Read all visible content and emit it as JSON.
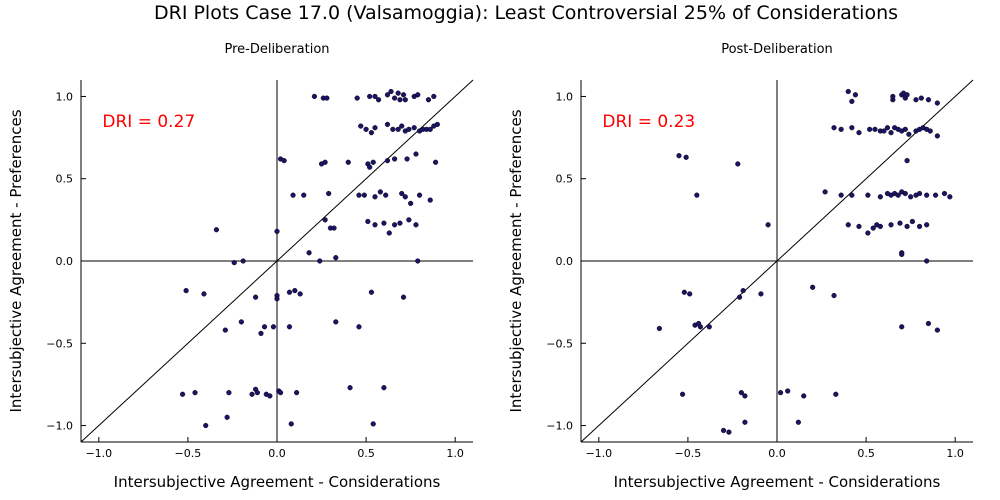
{
  "figure_title": "DRI Plots Case 17.0 (Valsamoggia): Least Controversial 25% of Considerations",
  "chart_data": [
    {
      "type": "scatter",
      "title": "Pre-Deliberation",
      "annotation": "DRI = 0.27",
      "annotation_color": "#ff0000",
      "xlabel": "Intersubjective Agreement - Considerations",
      "ylabel": "Intersubjective Agreement - Preferences",
      "xlim": [
        -1.1,
        1.1
      ],
      "ylim": [
        -1.1,
        1.1
      ],
      "xticks": [
        -1.0,
        -0.5,
        0.0,
        0.5,
        1.0
      ],
      "yticks": [
        -1.0,
        -0.5,
        0.0,
        0.5,
        1.0
      ],
      "xtick_labels": [
        "−1.0",
        "−0.5",
        "0.0",
        "0.5",
        "1.0"
      ],
      "ytick_labels": [
        "−1.0",
        "−0.5",
        "0.0",
        "0.5",
        "1.0"
      ],
      "grid": false,
      "point_color": "#1a1464",
      "points": [
        [
          0.21,
          1.0
        ],
        [
          0.26,
          0.99
        ],
        [
          0.28,
          0.99
        ],
        [
          0.45,
          0.99
        ],
        [
          0.52,
          1.0
        ],
        [
          0.55,
          1.0
        ],
        [
          0.57,
          0.98
        ],
        [
          0.62,
          1.01
        ],
        [
          0.64,
          1.03
        ],
        [
          0.66,
          0.99
        ],
        [
          0.68,
          1.02
        ],
        [
          0.69,
          0.98
        ],
        [
          0.71,
          1.01
        ],
        [
          0.72,
          0.98
        ],
        [
          0.77,
          1.0
        ],
        [
          0.79,
          1.01
        ],
        [
          0.85,
          0.98
        ],
        [
          0.88,
          1.0
        ],
        [
          0.47,
          0.82
        ],
        [
          0.5,
          0.8
        ],
        [
          0.53,
          0.78
        ],
        [
          0.55,
          0.81
        ],
        [
          0.62,
          0.83
        ],
        [
          0.65,
          0.8
        ],
        [
          0.68,
          0.8
        ],
        [
          0.7,
          0.82
        ],
        [
          0.72,
          0.79
        ],
        [
          0.74,
          0.8
        ],
        [
          0.77,
          0.81
        ],
        [
          0.8,
          0.79
        ],
        [
          0.82,
          0.8
        ],
        [
          0.84,
          0.8
        ],
        [
          0.86,
          0.8
        ],
        [
          0.88,
          0.82
        ],
        [
          0.9,
          0.83
        ],
        [
          0.02,
          0.62
        ],
        [
          0.04,
          0.61
        ],
        [
          0.25,
          0.59
        ],
        [
          0.27,
          0.6
        ],
        [
          0.4,
          0.6
        ],
        [
          0.51,
          0.59
        ],
        [
          0.52,
          0.57
        ],
        [
          0.54,
          0.6
        ],
        [
          0.62,
          0.61
        ],
        [
          0.66,
          0.62
        ],
        [
          0.73,
          0.62
        ],
        [
          0.78,
          0.65
        ],
        [
          0.89,
          0.6
        ],
        [
          0.09,
          0.4
        ],
        [
          0.15,
          0.4
        ],
        [
          0.29,
          0.41
        ],
        [
          0.46,
          0.4
        ],
        [
          0.49,
          0.4
        ],
        [
          0.55,
          0.39
        ],
        [
          0.58,
          0.42
        ],
        [
          0.61,
          0.4
        ],
        [
          0.7,
          0.41
        ],
        [
          0.72,
          0.39
        ],
        [
          0.75,
          0.35
        ],
        [
          0.8,
          0.4
        ],
        [
          0.86,
          0.37
        ],
        [
          -0.34,
          0.19
        ],
        [
          0.0,
          0.18
        ],
        [
          0.18,
          0.05
        ],
        [
          0.27,
          0.25
        ],
        [
          0.3,
          0.2
        ],
        [
          0.32,
          0.2
        ],
        [
          0.33,
          0.02
        ],
        [
          0.51,
          0.24
        ],
        [
          0.55,
          0.22
        ],
        [
          0.6,
          0.23
        ],
        [
          0.63,
          0.17
        ],
        [
          0.66,
          0.22
        ],
        [
          0.69,
          0.23
        ],
        [
          0.74,
          0.25
        ],
        [
          0.78,
          0.22
        ],
        [
          0.79,
          0.0
        ],
        [
          -0.24,
          -0.01
        ],
        [
          -0.19,
          0.0
        ],
        [
          0.24,
          0.0
        ],
        [
          -0.51,
          -0.18
        ],
        [
          -0.41,
          -0.2
        ],
        [
          -0.29,
          -0.42
        ],
        [
          -0.2,
          -0.37
        ],
        [
          -0.12,
          -0.22
        ],
        [
          -0.09,
          -0.44
        ],
        [
          -0.07,
          -0.4
        ],
        [
          -0.02,
          -0.4
        ],
        [
          0.0,
          -0.21
        ],
        [
          0.0,
          -0.23
        ],
        [
          0.07,
          -0.4
        ],
        [
          0.07,
          -0.19
        ],
        [
          0.1,
          -0.18
        ],
        [
          0.13,
          -0.2
        ],
        [
          0.33,
          -0.37
        ],
        [
          0.46,
          -0.4
        ],
        [
          0.53,
          -0.19
        ],
        [
          0.71,
          -0.22
        ],
        [
          -0.53,
          -0.81
        ],
        [
          -0.46,
          -0.8
        ],
        [
          -0.27,
          -0.8
        ],
        [
          -0.28,
          -0.95
        ],
        [
          -0.14,
          -0.81
        ],
        [
          -0.12,
          -0.78
        ],
        [
          -0.11,
          -0.8
        ],
        [
          -0.06,
          -0.81
        ],
        [
          -0.04,
          -0.82
        ],
        [
          0.01,
          -0.79
        ],
        [
          0.02,
          -0.8
        ],
        [
          0.08,
          -0.99
        ],
        [
          0.11,
          -0.8
        ],
        [
          0.41,
          -0.77
        ],
        [
          0.6,
          -0.77
        ],
        [
          0.54,
          -0.99
        ],
        [
          -0.4,
          -1.0
        ]
      ]
    },
    {
      "type": "scatter",
      "title": "Post-Deliberation",
      "annotation": "DRI = 0.23",
      "annotation_color": "#ff0000",
      "xlabel": "Intersubjective Agreement - Considerations",
      "ylabel": "Intersubjective Agreement - Preferences",
      "xlim": [
        -1.1,
        1.1
      ],
      "ylim": [
        -1.1,
        1.1
      ],
      "xticks": [
        -1.0,
        -0.5,
        0.0,
        0.5,
        1.0
      ],
      "yticks": [
        -1.0,
        -0.5,
        0.0,
        0.5,
        1.0
      ],
      "xtick_labels": [
        "−1.0",
        "−0.5",
        "0.0",
        "0.5",
        "1.0"
      ],
      "ytick_labels": [
        "−1.0",
        "−0.5",
        "0.0",
        "0.5",
        "1.0"
      ],
      "grid": false,
      "point_color": "#1a1464",
      "points": [
        [
          0.4,
          1.03
        ],
        [
          0.42,
          0.97
        ],
        [
          0.44,
          1.01
        ],
        [
          0.65,
          0.98
        ],
        [
          0.65,
          1.0
        ],
        [
          0.7,
          1.01
        ],
        [
          0.71,
          1.02
        ],
        [
          0.72,
          0.99
        ],
        [
          0.73,
          1.01
        ],
        [
          0.78,
          0.98
        ],
        [
          0.81,
          0.99
        ],
        [
          0.85,
          0.98
        ],
        [
          0.9,
          0.96
        ],
        [
          0.32,
          0.81
        ],
        [
          0.36,
          0.8
        ],
        [
          0.42,
          0.81
        ],
        [
          0.46,
          0.78
        ],
        [
          0.52,
          0.8
        ],
        [
          0.55,
          0.8
        ],
        [
          0.58,
          0.79
        ],
        [
          0.6,
          0.79
        ],
        [
          0.62,
          0.81
        ],
        [
          0.64,
          0.78
        ],
        [
          0.66,
          0.81
        ],
        [
          0.68,
          0.8
        ],
        [
          0.7,
          0.79
        ],
        [
          0.72,
          0.8
        ],
        [
          0.74,
          0.77
        ],
        [
          0.78,
          0.79
        ],
        [
          0.8,
          0.8
        ],
        [
          0.82,
          0.81
        ],
        [
          0.84,
          0.8
        ],
        [
          0.86,
          0.79
        ],
        [
          0.9,
          0.76
        ],
        [
          -0.55,
          0.64
        ],
        [
          -0.51,
          0.63
        ],
        [
          -0.22,
          0.59
        ],
        [
          0.73,
          0.61
        ],
        [
          -0.45,
          0.4
        ],
        [
          0.27,
          0.42
        ],
        [
          0.36,
          0.4
        ],
        [
          0.42,
          0.4
        ],
        [
          0.51,
          0.4
        ],
        [
          0.58,
          0.39
        ],
        [
          0.62,
          0.41
        ],
        [
          0.64,
          0.4
        ],
        [
          0.66,
          0.41
        ],
        [
          0.68,
          0.4
        ],
        [
          0.7,
          0.42
        ],
        [
          0.72,
          0.41
        ],
        [
          0.75,
          0.39
        ],
        [
          0.78,
          0.4
        ],
        [
          0.8,
          0.41
        ],
        [
          0.84,
          0.4
        ],
        [
          0.89,
          0.4
        ],
        [
          0.94,
          0.41
        ],
        [
          0.97,
          0.39
        ],
        [
          -0.05,
          0.22
        ],
        [
          0.4,
          0.22
        ],
        [
          0.46,
          0.21
        ],
        [
          0.51,
          0.17
        ],
        [
          0.54,
          0.2
        ],
        [
          0.56,
          0.22
        ],
        [
          0.58,
          0.21
        ],
        [
          0.64,
          0.22
        ],
        [
          0.69,
          0.23
        ],
        [
          0.73,
          0.21
        ],
        [
          0.76,
          0.24
        ],
        [
          0.8,
          0.21
        ],
        [
          0.84,
          0.22
        ],
        [
          0.7,
          0.05
        ],
        [
          0.7,
          0.04
        ],
        [
          0.84,
          0.0
        ],
        [
          -0.52,
          -0.19
        ],
        [
          -0.49,
          -0.2
        ],
        [
          -0.46,
          -0.39
        ],
        [
          -0.44,
          -0.38
        ],
        [
          -0.43,
          -0.4
        ],
        [
          -0.38,
          -0.4
        ],
        [
          -0.21,
          -0.22
        ],
        [
          -0.19,
          -0.18
        ],
        [
          -0.09,
          -0.2
        ],
        [
          0.2,
          -0.16
        ],
        [
          0.32,
          -0.21
        ],
        [
          0.7,
          -0.4
        ],
        [
          0.85,
          -0.38
        ],
        [
          0.9,
          -0.42
        ],
        [
          -0.66,
          -0.41
        ],
        [
          -0.53,
          -0.81
        ],
        [
          -0.2,
          -0.8
        ],
        [
          -0.18,
          -0.82
        ],
        [
          0.02,
          -0.8
        ],
        [
          0.06,
          -0.79
        ],
        [
          0.15,
          -0.82
        ],
        [
          0.33,
          -0.81
        ],
        [
          -0.3,
          -1.03
        ],
        [
          -0.27,
          -1.04
        ],
        [
          -0.18,
          -0.98
        ],
        [
          0.12,
          -0.98
        ]
      ]
    }
  ]
}
